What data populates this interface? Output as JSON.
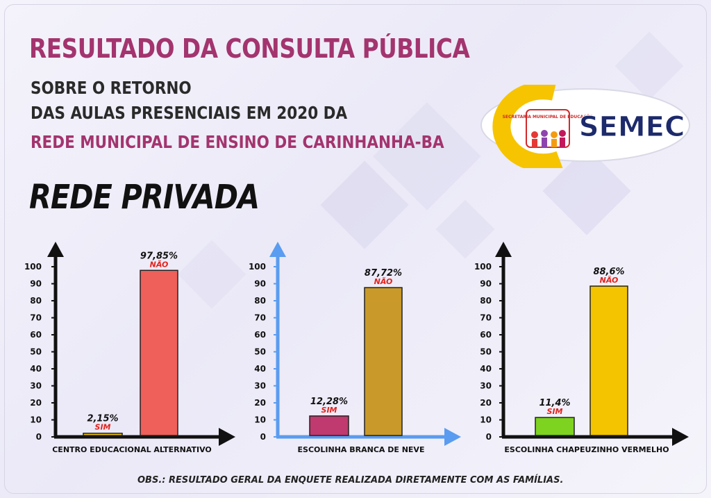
{
  "header": {
    "title": "RESULTADO DA CONSULTA PÚBLICA",
    "line1": "SOBRE O RETORNO",
    "line2": "DAS AULAS PRESENCIAIS EM 2020 DA",
    "line3": "REDE MUNICIPAL DE ENSINO DE CARINHANHA-BA",
    "section": "REDE PRIVADA"
  },
  "logo": {
    "name": "SEMEC",
    "seal_text": "SECRETARIA MUNICIPAL DE EDUCAÇÃO",
    "colors": {
      "yellow": "#f6c400",
      "navy": "#1d2a6b"
    }
  },
  "footer": {
    "obs": "OBS.: RESULTADO GERAL DA ENQUETE REALIZADA DIRETAMENTE COM AS FAMÍLIAS."
  },
  "chart_data": [
    {
      "type": "bar",
      "title": "CENTRO EDUCACIONAL ALTERNATIVO",
      "categories": [
        "SIM",
        "NÃO"
      ],
      "values": [
        2.15,
        97.85
      ],
      "value_labels": [
        "2,15%",
        "97,85%"
      ],
      "colors": [
        "#f2c200",
        "#f0605a"
      ],
      "axis_color": "#111111",
      "ylim": [
        0,
        100
      ],
      "yticks": [
        "0",
        "10",
        "20",
        "30",
        "40",
        "50",
        "60",
        "70",
        "80",
        "90",
        "100"
      ]
    },
    {
      "type": "bar",
      "title": "ESCOLINHA BRANCA DE NEVE",
      "categories": [
        "SIM",
        "NÃO"
      ],
      "values": [
        12.28,
        87.72
      ],
      "value_labels": [
        "12,28%",
        "87,72%"
      ],
      "colors": [
        "#c0396f",
        "#c99a2a"
      ],
      "axis_color": "#5a9cf0",
      "ylim": [
        0,
        100
      ],
      "yticks": [
        "0",
        "10",
        "20",
        "30",
        "40",
        "50",
        "60",
        "70",
        "80",
        "90",
        "100"
      ]
    },
    {
      "type": "bar",
      "title": "ESCOLINHA CHAPEUZINHO VERMELHO",
      "categories": [
        "SIM",
        "NÃO"
      ],
      "values": [
        11.4,
        88.6
      ],
      "value_labels": [
        "11,4%",
        "88,6%"
      ],
      "colors": [
        "#7ed321",
        "#f4c400"
      ],
      "axis_color": "#111111",
      "ylim": [
        0,
        100
      ],
      "yticks": [
        "0",
        "10",
        "20",
        "30",
        "40",
        "50",
        "60",
        "70",
        "80",
        "90",
        "100"
      ]
    }
  ]
}
